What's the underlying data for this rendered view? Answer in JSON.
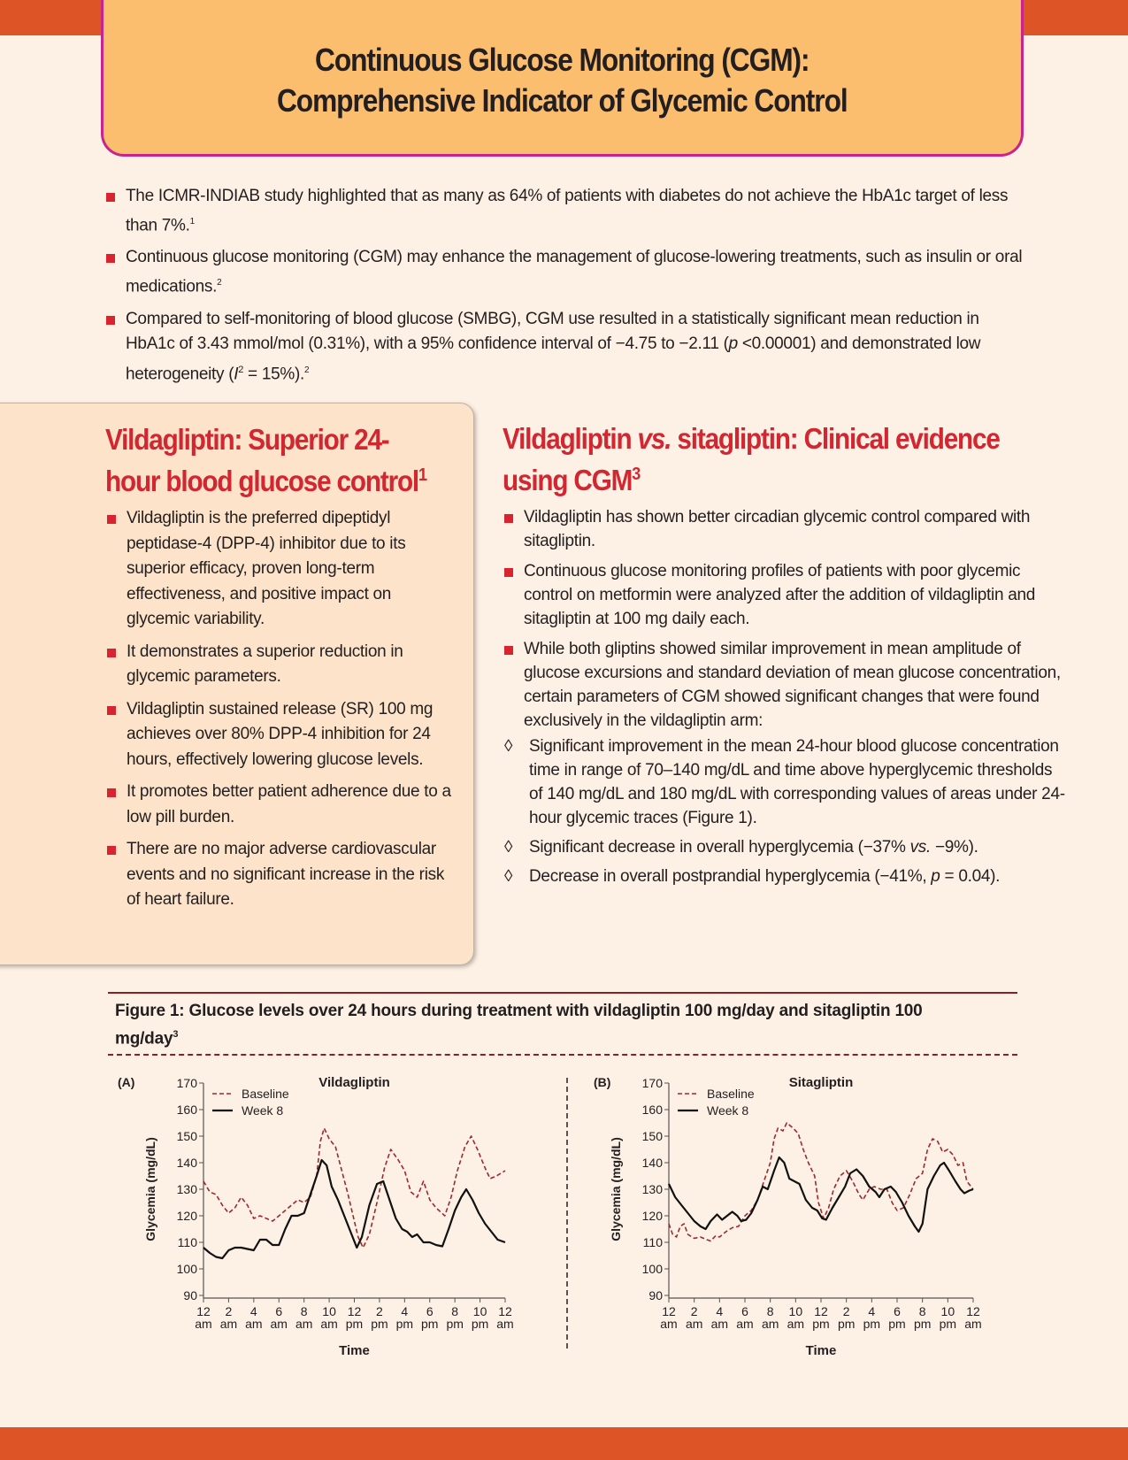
{
  "header": {
    "title_line1": "Continuous Glucose Monitoring (CGM):",
    "title_line2": "Comprehensive Indicator of Glycemic Control"
  },
  "intro_bullets": [
    {
      "text": "The ICMR-INDIAB study highlighted that as many as 64% of patients with diabetes do not achieve the HbA1c target of less than 7%.",
      "ref": "1"
    },
    {
      "text": "Continuous glucose monitoring (CGM) may enhance the management of glucose-lowering treatments, such as insulin or oral medications.",
      "ref": "2"
    },
    {
      "text_a": "Compared to self-monitoring of blood glucose (SMBG), CGM use resulted in a statistically significant mean reduction in HbA1c of 3.43 mmol/mol (0.31%), with a 95% confidence interval of −4.75 to −2.11 (",
      "p": "p",
      "text_b": " <0.00001) and demonstrated low heterogeneity (",
      "i": "I",
      "sq": "2",
      "text_c": " = 15%).",
      "ref": "2"
    }
  ],
  "left_section": {
    "heading": "Vildagliptin: Superior 24-hour blood glucose control",
    "ref": "1",
    "bullets": [
      "Vildagliptin is the preferred dipeptidyl peptidase-4 (DPP-4) inhibitor due to its superior efficacy, proven long-term effectiveness, and positive impact on glycemic variability.",
      "It demonstrates a superior reduction in glycemic parameters.",
      "Vildagliptin sustained release (SR) 100 mg achieves over 80% DPP-4 inhibition for 24 hours, effectively lowering glucose levels.",
      "It promotes better patient adherence due to a low pill burden.",
      "There are no major adverse cardiovascular events and no significant increase in the risk of heart failure."
    ]
  },
  "right_section": {
    "heading_a": "Vildagliptin ",
    "heading_vs": "vs.",
    "heading_b": " sitagliptin: Clinical evidence using CGM",
    "ref": "3",
    "bullets": [
      "Vildagliptin has shown better circadian glycemic control compared with sitagliptin.",
      "Continuous glucose monitoring profiles of patients with poor glycemic control on metformin were analyzed after the addition of vildagliptin and sitagliptin at 100 mg daily each.",
      "While both gliptins showed similar improvement in mean amplitude of glucose excursions and standard deviation of mean glucose concentration, certain parameters of CGM showed significant changes that were found exclusively in the vildagliptin arm:"
    ],
    "sub_bullets": {
      "s1": "Significant improvement in the mean 24-hour blood glucose concentration time in range of 70–140 mg/dL and time above hyperglycemic thresholds of 140 mg/dL and 180 mg/dL with corresponding values of areas under 24-hour glycemic traces (Figure 1).",
      "s2a": "Significant decrease in overall hyperglycemia (−37% ",
      "s2vs": "vs.",
      "s2b": " −9%).",
      "s3a": "Decrease in overall postprandial hyperglycemia (−41%, ",
      "s3p": "p",
      "s3b": " = 0.04)."
    }
  },
  "figure": {
    "caption": "Figure 1: Glucose levels over 24 hours during treatment with vildagliptin 100 mg/day and sitagliptin 100 mg/day",
    "ref": "3"
  },
  "colors": {
    "baseline": "#a0282d",
    "week8": "#111111",
    "accent_red": "#d22630",
    "orange": "#dd5527"
  },
  "chart_data": [
    {
      "type": "line",
      "panel": "(A)",
      "title": "Vildagliptin",
      "xlabel": "Time",
      "ylabel": "Glycemia (mg/dL)",
      "ylim": [
        90,
        170
      ],
      "yticks": [
        90,
        100,
        110,
        120,
        130,
        140,
        150,
        160,
        170
      ],
      "xlim": [
        0,
        24
      ],
      "xtick_labels": [
        [
          "12",
          "am"
        ],
        [
          "2",
          "am"
        ],
        [
          "4",
          "am"
        ],
        [
          "6",
          "am"
        ],
        [
          "8",
          "am"
        ],
        [
          "10",
          "am"
        ],
        [
          "12",
          "pm"
        ],
        [
          "2",
          "pm"
        ],
        [
          "4",
          "pm"
        ],
        [
          "6",
          "pm"
        ],
        [
          "8",
          "pm"
        ],
        [
          "10",
          "pm"
        ],
        [
          "12",
          "am"
        ]
      ],
      "legend": [
        "Baseline",
        "Week 8"
      ],
      "legend_position": "top-left",
      "series": [
        {
          "name": "Baseline",
          "style": "dashed",
          "x": [
            0,
            0.5,
            1,
            1.5,
            2,
            2.5,
            3,
            3.5,
            4,
            4.5,
            5,
            5.5,
            6,
            6.5,
            7,
            7.5,
            8,
            8.5,
            9,
            9.3,
            9.6,
            10,
            10.5,
            11,
            11.5,
            12,
            12.3,
            12.7,
            13.2,
            13.8,
            14.4,
            14.9,
            15.5,
            16,
            16.5,
            17,
            17.5,
            18,
            18.5,
            19.2,
            19.7,
            20.2,
            20.8,
            21.3,
            21.8,
            22.4,
            22.8,
            23.3,
            24
          ],
          "y": [
            133,
            129,
            128,
            124,
            121,
            123,
            127,
            124,
            119,
            120,
            119,
            118,
            120,
            122,
            124,
            126,
            125,
            127,
            135,
            148,
            153,
            149,
            146,
            137,
            128,
            118,
            112,
            108,
            113,
            125,
            138,
            145,
            141,
            137,
            129,
            127,
            133,
            126,
            123,
            120,
            127,
            137,
            146,
            150,
            145,
            138,
            134,
            135,
            137
          ]
        },
        {
          "name": "Week 8",
          "style": "solid",
          "x": [
            0,
            0.5,
            1,
            1.5,
            2,
            2.5,
            3,
            3.5,
            4,
            4.5,
            5,
            5.5,
            6,
            6.5,
            7,
            7.5,
            8,
            8.5,
            9,
            9.4,
            9.8,
            10.2,
            10.7,
            11.2,
            11.7,
            12.2,
            12.6,
            13.2,
            13.8,
            14.3,
            14.8,
            15.3,
            15.8,
            16.2,
            16.6,
            17,
            17.5,
            18,
            18.5,
            19,
            19.5,
            20,
            20.5,
            20.9,
            21.4,
            21.9,
            22.4,
            22.9,
            23.4,
            24
          ],
          "y": [
            108,
            106,
            104.5,
            104,
            107,
            108,
            108,
            107.5,
            107,
            111,
            111,
            109,
            109,
            115,
            120,
            120,
            121,
            128,
            135,
            141,
            139,
            131,
            126,
            120,
            114,
            108,
            112,
            124,
            132,
            133,
            126,
            119,
            115,
            114,
            112,
            113,
            110,
            110,
            109,
            108.5,
            115,
            122,
            127,
            130,
            126,
            121,
            117,
            114,
            111,
            110
          ]
        }
      ]
    },
    {
      "type": "line",
      "panel": "(B)",
      "title": "Sitagliptin",
      "xlabel": "Time",
      "ylabel": "Glycemia (mg/dL)",
      "ylim": [
        90,
        170
      ],
      "yticks": [
        90,
        100,
        110,
        120,
        130,
        140,
        150,
        160,
        170
      ],
      "xlim": [
        0,
        24
      ],
      "xtick_labels": [
        [
          "12",
          "am"
        ],
        [
          "2",
          "am"
        ],
        [
          "4",
          "am"
        ],
        [
          "6",
          "am"
        ],
        [
          "8",
          "am"
        ],
        [
          "10",
          "am"
        ],
        [
          "12",
          "pm"
        ],
        [
          "2",
          "pm"
        ],
        [
          "4",
          "pm"
        ],
        [
          "6",
          "pm"
        ],
        [
          "8",
          "pm"
        ],
        [
          "10",
          "pm"
        ],
        [
          "12",
          "am"
        ]
      ],
      "legend": [
        "Baseline",
        "Week 8"
      ],
      "legend_position": "top-left",
      "series": [
        {
          "name": "Baseline",
          "style": "dashed",
          "x": [
            0,
            0.3,
            0.6,
            0.9,
            1.2,
            1.5,
            2,
            2.5,
            3,
            3.3,
            3.7,
            4,
            4.5,
            5,
            5.5,
            6,
            6.5,
            7,
            7.5,
            8,
            8.3,
            8.6,
            9,
            9.3,
            9.8,
            10.2,
            10.6,
            11,
            11.5,
            11.8,
            12.2,
            12.6,
            13,
            13.5,
            14,
            14.5,
            15,
            15.3,
            15.8,
            16.2,
            16.7,
            17.2,
            17.6,
            18,
            18.5,
            19,
            19.5,
            20,
            20.4,
            20.8,
            21.2,
            21.6,
            22,
            22.4,
            22.8,
            23.2,
            23.5,
            24
          ],
          "y": [
            117,
            113,
            112,
            116,
            117,
            113,
            111.5,
            112,
            111,
            110.5,
            112.5,
            112,
            114,
            115.5,
            116,
            120,
            122,
            126,
            133,
            140,
            149,
            153,
            152,
            155,
            153,
            151,
            145,
            140,
            135,
            125,
            119,
            123,
            130,
            135,
            137,
            133,
            128,
            126,
            130,
            131,
            130,
            130,
            125,
            122,
            123,
            128,
            134,
            136,
            145,
            149,
            148,
            144,
            145,
            143,
            139,
            140,
            133,
            130
          ]
        },
        {
          "name": "Week 8",
          "style": "solid",
          "x": [
            0,
            0.5,
            1,
            1.5,
            2,
            2.5,
            2.9,
            3.3,
            3.8,
            4.2,
            4.6,
            5,
            5.4,
            5.7,
            6.1,
            6.5,
            7,
            7.4,
            7.8,
            8.3,
            8.7,
            9.1,
            9.5,
            9.9,
            10.3,
            10.8,
            11.3,
            11.7,
            12.1,
            12.4,
            12.9,
            13.4,
            13.9,
            14.3,
            14.8,
            15.3,
            15.8,
            16.3,
            16.6,
            17,
            17.5,
            17.9,
            18.4,
            18.9,
            19.4,
            19.7,
            20,
            20.4,
            20.9,
            21.4,
            21.7,
            22.1,
            22.6,
            23,
            23.3,
            23.7,
            24
          ],
          "y": [
            132,
            127,
            124,
            121,
            118,
            116,
            115,
            118,
            120.5,
            118.5,
            120,
            121.5,
            120,
            118,
            118.5,
            121,
            126,
            131,
            130,
            137,
            142,
            140,
            134,
            133,
            132,
            126,
            123,
            122,
            119,
            118.5,
            123,
            127,
            131,
            136,
            137.5,
            135,
            131,
            129,
            127,
            130,
            131,
            129,
            125,
            120,
            116,
            114,
            117,
            130,
            135,
            139,
            140,
            137,
            133,
            130,
            128.5,
            129.5,
            130
          ]
        }
      ]
    }
  ]
}
